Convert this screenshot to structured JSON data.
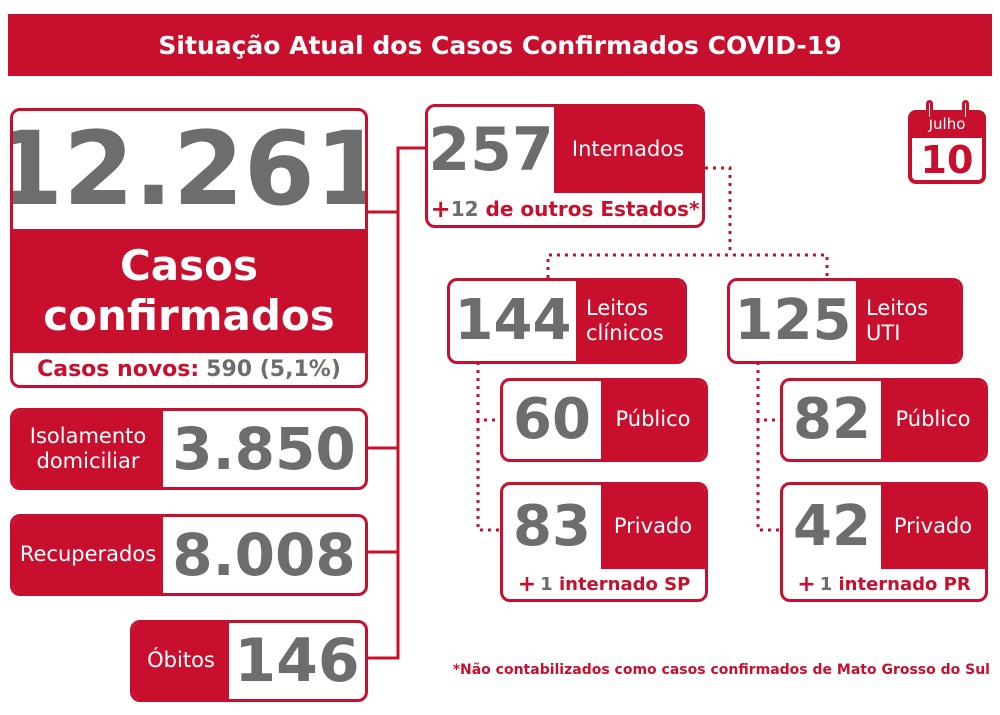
{
  "header": {
    "title": "Situação Atual dos Casos Confirmados COVID-19"
  },
  "date": {
    "month": "Julho",
    "day": "10"
  },
  "confirmed": {
    "value": "12.261",
    "label_line1": "Casos",
    "label_line2": "confirmados",
    "new_label": "Casos novos:",
    "new_value": "590 (5,1%)"
  },
  "isolation": {
    "label_line1": "Isolamento",
    "label_line2": "domiciliar",
    "value": "3.850"
  },
  "recovered": {
    "label": "Recuperados",
    "value": "8.008"
  },
  "deaths": {
    "label": "Óbitos",
    "value": "146"
  },
  "hospitalized": {
    "value": "257",
    "label": "Internados",
    "note_plus": "+",
    "note_value": "12",
    "note_text": " de outros Estados*"
  },
  "clinical": {
    "value": "144",
    "label_line1": "Leitos",
    "label_line2": "clínicos"
  },
  "icu": {
    "value": "125",
    "label_line1": "Leitos",
    "label_line2": "UTI"
  },
  "clinical_public": {
    "value": "60",
    "label": "Público"
  },
  "clinical_private": {
    "value": "83",
    "label": "Privado",
    "note_plus": "+",
    "note_value": "1",
    "note_text": " internado SP"
  },
  "icu_public": {
    "value": "82",
    "label": "Público"
  },
  "icu_private": {
    "value": "42",
    "label": "Privado",
    "note_plus": "+",
    "note_value": "1",
    "note_text": " internado PR"
  },
  "footnote": "*Não contabilizados como casos confirmados de Mato Grosso do Sul"
}
